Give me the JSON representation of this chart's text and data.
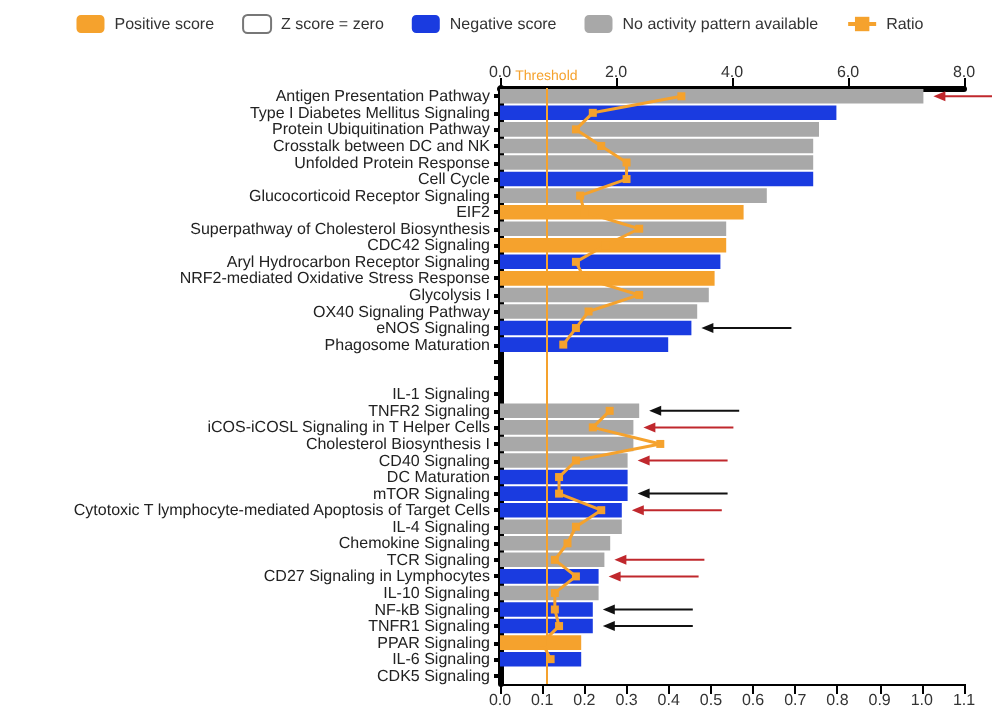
{
  "chart_data": {
    "type": "bar",
    "orientation": "horizontal",
    "legend": "top",
    "grid": false,
    "marker": "square",
    "categories": [
      "Antigen Presentation Pathway",
      "Type I Diabetes Mellitus Signaling",
      "Protein Ubiquitination Pathway",
      "Crosstalk between DC and NK",
      "Unfolded Protein Response",
      "Cell Cycle",
      "Glucocorticoid Receptor Signaling",
      "EIF2",
      "Superpathway of Cholesterol Biosynthesis",
      "CDC42 Signaling",
      "Aryl Hydrocarbon Receptor Signaling",
      "NRF2-mediated Oxidative Stress Response",
      "Glycolysis I",
      "OX40 Signaling Pathway",
      "eNOS Signaling",
      "Phagosome Maturation",
      null,
      null,
      "IL-1 Signaling",
      "TNFR2 Signaling",
      "iCOS-iCOSL Signaling in T Helper Cells",
      "Cholesterol Biosynthesis I",
      "CD40 Signaling",
      "DC Maturation",
      "mTOR Signaling",
      "Cytotoxic T lymphocyte-mediated Apoptosis of Target Cells",
      "IL-4 Signaling",
      "Chemokine Signaling",
      "TCR Signaling",
      "CD27 Signaling in Lymphocytes",
      "IL-10 Signaling",
      "NF-kB Signaling",
      "TNFR1 Signaling",
      "PPAR Signaling",
      "IL-6 Signaling",
      "CDK5 Signaling"
    ],
    "series": [
      {
        "name": "Positive score",
        "color": "#f5a22d",
        "axis": "x2",
        "values": [
          null,
          null,
          null,
          null,
          null,
          null,
          null,
          4.2,
          null,
          3.9,
          null,
          3.7,
          null,
          null,
          null,
          null,
          null,
          null,
          null,
          null,
          null,
          null,
          null,
          null,
          null,
          null,
          null,
          null,
          null,
          null,
          null,
          null,
          null,
          1.4,
          null,
          null
        ]
      },
      {
        "name": "Z score = zero",
        "color": "#ffffff",
        "axis": "x2",
        "values": [
          null,
          null,
          null,
          null,
          null,
          null,
          null,
          null,
          null,
          null,
          null,
          null,
          null,
          null,
          null,
          null,
          null,
          null,
          null,
          null,
          null,
          null,
          null,
          null,
          null,
          null,
          null,
          null,
          null,
          null,
          null,
          null,
          null,
          null,
          null,
          null
        ]
      },
      {
        "name": "Negative score",
        "color": "#1a3be0",
        "axis": "x2",
        "values": [
          null,
          5.8,
          null,
          null,
          null,
          5.4,
          null,
          null,
          null,
          null,
          3.8,
          null,
          null,
          null,
          3.3,
          2.9,
          null,
          null,
          null,
          null,
          null,
          null,
          null,
          2.2,
          2.2,
          2.1,
          null,
          null,
          null,
          1.7,
          null,
          1.6,
          1.6,
          null,
          1.4,
          null
        ]
      },
      {
        "name": "No activity pattern available",
        "color": "#a8a8a8",
        "axis": "x2",
        "values": [
          7.3,
          null,
          5.5,
          5.4,
          5.4,
          null,
          4.6,
          null,
          3.9,
          null,
          null,
          null,
          3.6,
          3.4,
          null,
          null,
          null,
          null,
          null,
          2.4,
          2.3,
          2.3,
          2.2,
          null,
          null,
          null,
          2.1,
          1.9,
          1.8,
          null,
          1.7,
          null,
          null,
          null,
          null,
          null
        ]
      },
      {
        "name": "Ratio",
        "type": "line",
        "color": "#f5a22d",
        "values": [
          0.43,
          0.22,
          0.18,
          0.24,
          0.3,
          0.3,
          0.19,
          0.2,
          0.33,
          0.25,
          0.18,
          0.2,
          0.33,
          0.21,
          0.18,
          0.15,
          null,
          null,
          null,
          0.26,
          0.22,
          0.38,
          0.18,
          0.14,
          0.14,
          0.24,
          0.18,
          0.16,
          0.13,
          0.18,
          0.13,
          0.13,
          0.14,
          0.1,
          0.12,
          null
        ]
      }
    ],
    "xlim": [
      0,
      1.1
    ],
    "xticks": [
      {
        "value": 0,
        "label": "0.0"
      },
      0.1,
      0.2,
      0.3,
      0.4,
      0.5,
      0.6,
      0.7,
      0.8,
      0.9,
      {
        "value": 1,
        "label": "1.0"
      },
      1.1
    ],
    "x2lim": [
      0,
      8
    ],
    "x2ticks": [
      {
        "value": 0,
        "label": "0.0"
      },
      {
        "value": 2,
        "label": "2.0"
      },
      {
        "value": 4,
        "label": "4.0"
      },
      {
        "value": 6,
        "label": "6.0"
      },
      {
        "value": 8,
        "label": "8.0"
      }
    ],
    "ref_lines": [
      {
        "axis": "x2",
        "value": 0.8,
        "label": "Threshold",
        "color": "#f5a22d"
      }
    ]
  }
}
